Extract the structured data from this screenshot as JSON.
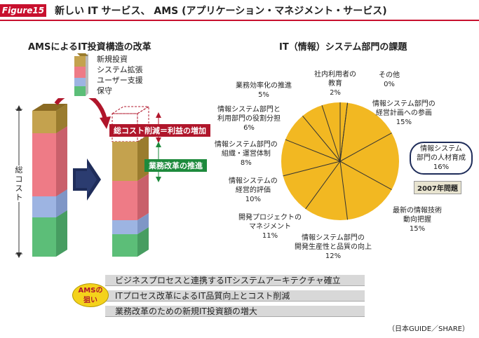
{
  "header": {
    "badge": "Figure15",
    "title": "新しい IT サービス、 AMS (アプリケーション・マネジメント・サービス)"
  },
  "left_section": {
    "title": "AMSによるIT投資構造の改革",
    "legend": [
      {
        "label": "新規投資",
        "color": "#c4a24e"
      },
      {
        "label": "システム拡張",
        "color": "#ee7b86"
      },
      {
        "label": "ユーザー支援",
        "color": "#9db4e2"
      },
      {
        "label": "保守",
        "color": "#5cbe78"
      }
    ],
    "axis_label": "総コスト",
    "tag_cost": "総コスト削減＝利益の増加",
    "tag_reform": "業務改革の推進"
  },
  "right_section": {
    "title": "IT（情報）システム部門の課題",
    "pie_color": "#f2b822",
    "issue_label": "2007年問題",
    "slices": [
      {
        "label": "社内利用者の\n教育",
        "value": "2%"
      },
      {
        "label": "その他",
        "value": "0%"
      },
      {
        "label": "情報システム部門の\n経営計画への参画",
        "value": "15%"
      },
      {
        "label": "情報システム\n部門の人材育成",
        "value": "16%"
      },
      {
        "label": "最新の情報技術\n動向把握",
        "value": "15%"
      },
      {
        "label": "情報システム部門の\n開発生産性と品質の向上",
        "value": "12%"
      },
      {
        "label": "開発プロジェクトの\nマネジメント",
        "value": "11%"
      },
      {
        "label": "情報システムの\n経営的評価",
        "value": "10%"
      },
      {
        "label": "情報システム部門の\n組織・運営体制",
        "value": "8%"
      },
      {
        "label": "情報システム部門と\n利用部門の役割分担",
        "value": "6%"
      },
      {
        "label": "業務効率化の推進",
        "value": "5%"
      }
    ]
  },
  "goals": {
    "badge": "AMSの\n狙い",
    "items": [
      "ビジネスプロセスと連携するITシステムアーキテクチャ確立",
      "ITプロセス改革によるIT品質向上とコスト削減",
      "業務改革のための新規IT投資額の増大"
    ]
  },
  "credit": "（日本GUIDE／SHARE）"
}
